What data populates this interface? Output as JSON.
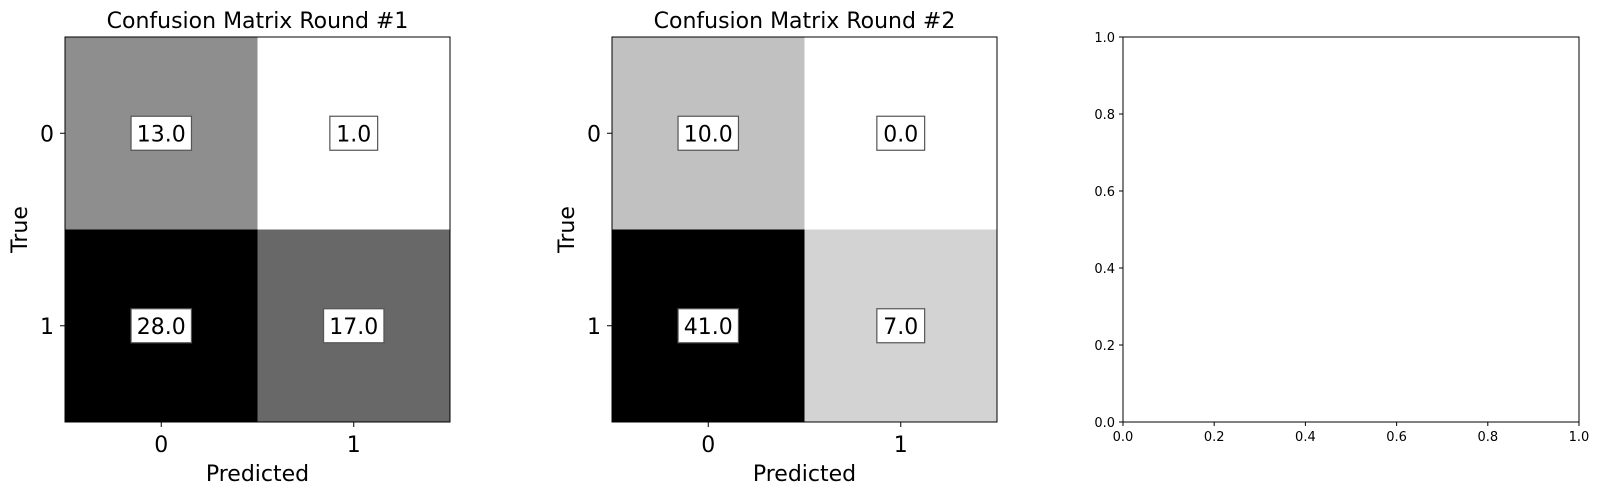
{
  "chart_data": [
    {
      "type": "heatmap",
      "title": "Confusion Matrix Round #1",
      "xlabel": "Predicted",
      "ylabel": "True",
      "x_ticks": [
        "0",
        "1"
      ],
      "y_ticks": [
        "0",
        "1"
      ],
      "values": [
        [
          13.0,
          1.0
        ],
        [
          28.0,
          17.0
        ]
      ],
      "value_labels": [
        [
          "13.0",
          "1.0"
        ],
        [
          "28.0",
          "17.0"
        ]
      ],
      "colormap": "gray_r"
    },
    {
      "type": "heatmap",
      "title": "Confusion Matrix Round #2",
      "xlabel": "Predicted",
      "ylabel": "True",
      "x_ticks": [
        "0",
        "1"
      ],
      "y_ticks": [
        "0",
        "1"
      ],
      "values": [
        [
          10.0,
          0.0
        ],
        [
          41.0,
          7.0
        ]
      ],
      "value_labels": [
        [
          "10.0",
          "0.0"
        ],
        [
          "41.0",
          "7.0"
        ]
      ],
      "colormap": "gray_r"
    },
    {
      "type": "scatter",
      "title": "",
      "xlabel": "",
      "ylabel": "",
      "xlim": [
        0.0,
        1.0
      ],
      "ylim": [
        0.0,
        1.0
      ],
      "x_ticks": [
        "0.0",
        "0.2",
        "0.4",
        "0.6",
        "0.8",
        "1.0"
      ],
      "y_ticks": [
        "0.0",
        "0.2",
        "0.4",
        "0.6",
        "0.8",
        "1.0"
      ],
      "series": []
    }
  ]
}
